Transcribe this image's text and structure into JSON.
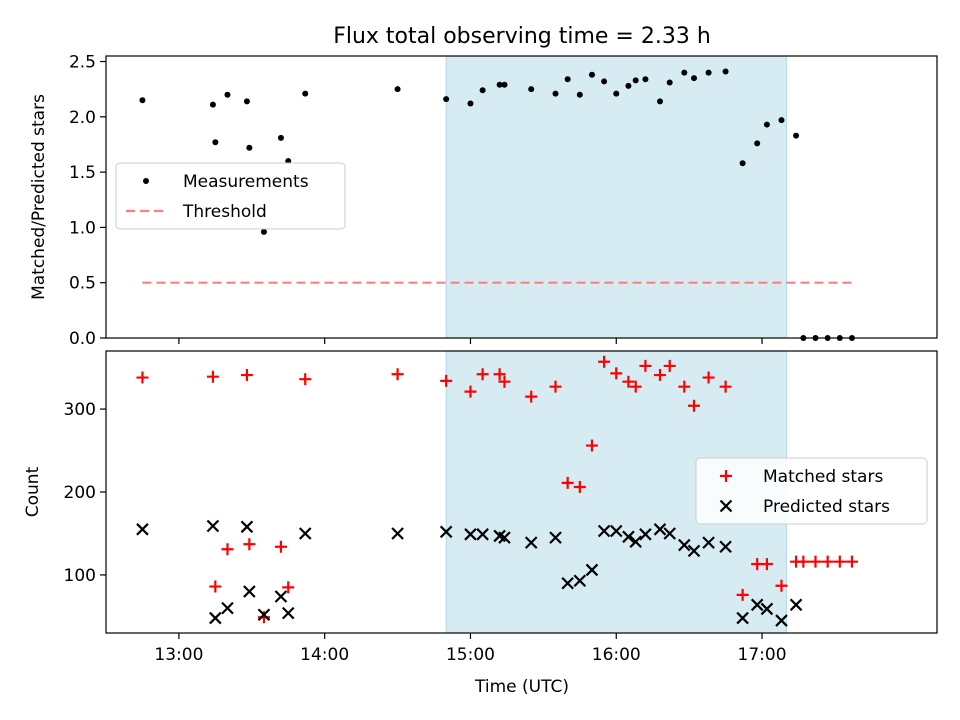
{
  "chart_data": {
    "title": "Flux total observing time = 2.33 h",
    "xlabel": "Time (UTC)",
    "x_ticks": [
      "13:00",
      "14:00",
      "15:00",
      "16:00",
      "17:00"
    ],
    "x_tick_hours": [
      13,
      14,
      15,
      16,
      17
    ],
    "xlim": [
      12.5,
      18.2
    ],
    "shaded_span": [
      "14:50",
      "17:10"
    ],
    "shade_color": "#add8e6",
    "panels": [
      {
        "type": "scatter",
        "ylabel": "Matched/Predicted stars",
        "ylim": [
          0,
          2.55
        ],
        "y_ticks": [
          "0.0",
          "0.5",
          "1.0",
          "1.5",
          "2.0",
          "2.5"
        ],
        "y_tick_values": [
          0,
          0.5,
          1.0,
          1.5,
          2.0,
          2.5
        ],
        "legend_position": "center-left",
        "series": [
          {
            "name": "Measurements",
            "marker": "dot",
            "color": "#000000",
            "x": [
              "12:45",
              "13:14",
              "13:15",
              "13:20",
              "13:28",
              "13:29",
              "13:35",
              "13:42",
              "13:45",
              "13:52",
              "14:30",
              "14:50",
              "15:00",
              "15:05",
              "15:12",
              "15:14",
              "15:25",
              "15:35",
              "15:40",
              "15:45",
              "15:50",
              "15:55",
              "16:00",
              "16:05",
              "16:08",
              "16:12",
              "16:18",
              "16:22",
              "16:28",
              "16:32",
              "16:38",
              "16:45",
              "16:52",
              "16:58",
              "17:02",
              "17:08",
              "17:14",
              "17:17",
              "17:22",
              "17:27",
              "17:32",
              "17:37"
            ],
            "y": [
              2.15,
              2.11,
              1.77,
              2.2,
              2.14,
              1.72,
              0.96,
              1.81,
              1.6,
              2.21,
              2.25,
              2.16,
              2.12,
              2.24,
              2.29,
              2.29,
              2.25,
              2.21,
              2.34,
              2.2,
              2.38,
              2.32,
              2.21,
              2.28,
              2.33,
              2.34,
              2.14,
              2.31,
              2.4,
              2.35,
              2.4,
              2.41,
              1.58,
              1.76,
              1.93,
              1.97,
              1.83,
              0.0,
              0.0,
              0.0,
              0.0,
              0.0
            ]
          },
          {
            "name": "Threshold",
            "marker": "dashed-line",
            "color": "#ff7f7f",
            "x": [
              "12:45",
              "17:37"
            ],
            "y": [
              0.5,
              0.5
            ]
          }
        ]
      },
      {
        "type": "scatter",
        "ylabel": "Count",
        "ylim": [
          30,
          370
        ],
        "y_ticks": [
          "100",
          "200",
          "300"
        ],
        "y_tick_values": [
          100,
          200,
          300
        ],
        "legend_position": "center-right",
        "series": [
          {
            "name": "Matched stars",
            "marker": "plus",
            "color": "#ff0000",
            "x": [
              "12:45",
              "13:14",
              "13:15",
              "13:20",
              "13:28",
              "13:29",
              "13:35",
              "13:42",
              "13:45",
              "13:52",
              "14:30",
              "14:50",
              "15:00",
              "15:05",
              "15:12",
              "15:14",
              "15:25",
              "15:35",
              "15:40",
              "15:45",
              "15:50",
              "15:55",
              "16:00",
              "16:05",
              "16:08",
              "16:12",
              "16:18",
              "16:22",
              "16:28",
              "16:32",
              "16:38",
              "16:45",
              "16:52",
              "16:58",
              "17:02",
              "17:08",
              "17:14",
              "17:17",
              "17:22",
              "17:27",
              "17:32",
              "17:37"
            ],
            "y": [
              338,
              339,
              86,
              131,
              341,
              137,
              49,
              134,
              85,
              336,
              342,
              334,
              321,
              342,
              342,
              333,
              315,
              327,
              211,
              206,
              256,
              357,
              343,
              333,
              327,
              352,
              341,
              352,
              327,
              304,
              338,
              327,
              76,
              113,
              113,
              87,
              116,
              116,
              116,
              116,
              116,
              116
            ]
          },
          {
            "name": "Predicted stars",
            "marker": "x",
            "color": "#000000",
            "x": [
              "12:45",
              "13:14",
              "13:15",
              "13:20",
              "13:28",
              "13:29",
              "13:35",
              "13:42",
              "13:45",
              "13:52",
              "14:30",
              "14:50",
              "15:00",
              "15:05",
              "15:12",
              "15:14",
              "15:25",
              "15:35",
              "15:40",
              "15:45",
              "15:50",
              "15:55",
              "16:00",
              "16:05",
              "16:08",
              "16:12",
              "16:18",
              "16:22",
              "16:28",
              "16:32",
              "16:38",
              "16:45",
              "16:52",
              "16:58",
              "17:02",
              "17:08",
              "17:14"
            ],
            "y": [
              155,
              159,
              48,
              60,
              158,
              80,
              52,
              74,
              54,
              150,
              150,
              152,
              149,
              149,
              147,
              145,
              139,
              145,
              90,
              93,
              106,
              153,
              153,
              146,
              140,
              149,
              155,
              150,
              136,
              129,
              139,
              134,
              48,
              64,
              59,
              45,
              64
            ]
          }
        ]
      }
    ]
  }
}
